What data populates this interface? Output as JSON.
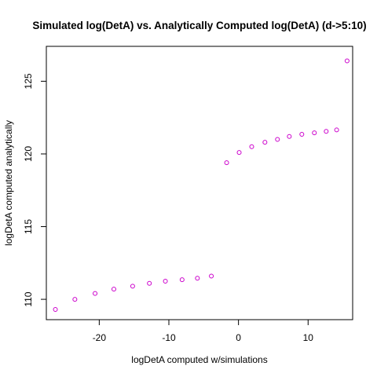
{
  "chart_data": {
    "type": "scatter",
    "title": "Simulated log(DetA) vs. Analytically Computed log(DetA) (d->5:10)",
    "xlabel": "logDetA computed w/simulations",
    "ylabel": "logDetA computed analytically",
    "xlim": [
      -27.6,
      16.4
    ],
    "ylim": [
      108.6,
      127.4
    ],
    "xticks": [
      -20,
      -10,
      0,
      10
    ],
    "yticks": [
      110,
      115,
      120,
      125
    ],
    "grid": false,
    "legend": "none",
    "point_color": "#cc00cc",
    "series": [
      {
        "x": [
          -26.3,
          -23.5,
          -20.6,
          -17.9,
          -15.2,
          -12.8,
          -10.5,
          -8.1,
          -5.9,
          -3.9,
          -1.7,
          0.1,
          1.9,
          3.8,
          5.6,
          7.3,
          9.1,
          10.9,
          12.6,
          14.1,
          15.6
        ],
        "y": [
          109.3,
          110.0,
          110.4,
          110.7,
          110.9,
          111.1,
          111.25,
          111.35,
          111.45,
          111.6,
          119.4,
          120.1,
          120.5,
          120.8,
          121.0,
          121.2,
          121.35,
          121.45,
          121.55,
          121.65,
          126.4
        ]
      }
    ]
  }
}
